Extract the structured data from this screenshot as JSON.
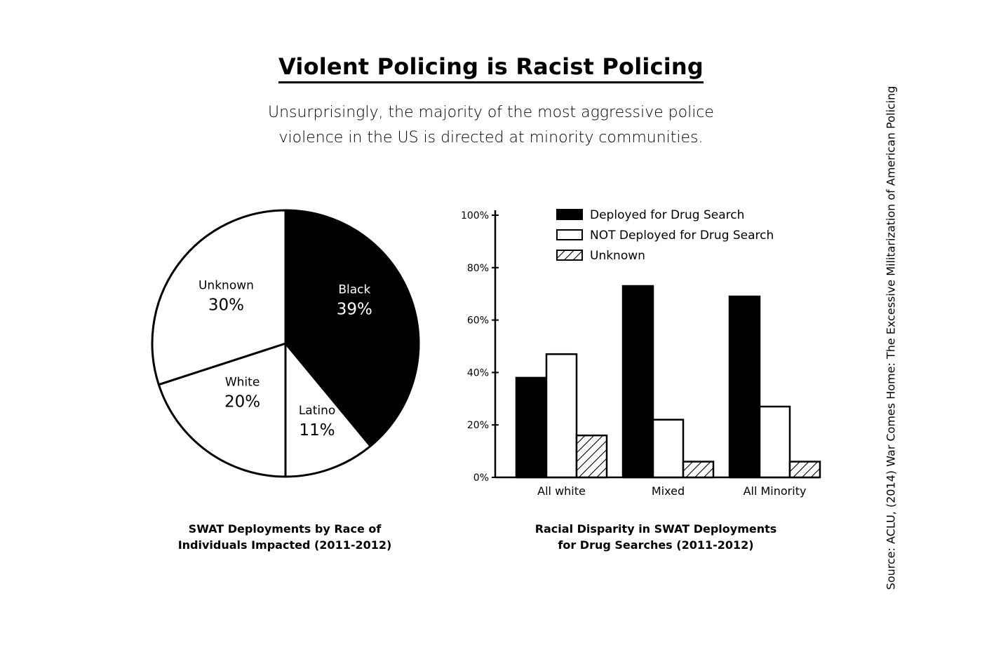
{
  "title": "Violent Policing is Racist Policing",
  "subtitle_line1": "Unsurprisingly, the majority of the most aggressive police",
  "subtitle_line2": "violence in the US is directed at minority communities.",
  "source": "Source: ACLU, (2014) War Comes Home: The Excessive Militarization of American Policing",
  "colors": {
    "black": "#000000",
    "white": "#ffffff"
  },
  "chart_data": [
    {
      "type": "pie",
      "title_line1": "SWAT Deployments by Race of",
      "title_line2": "Individuals Impacted (2011-2012)",
      "slices": [
        {
          "label": "Black",
          "value": 39,
          "display": "39%",
          "fill": "#000000"
        },
        {
          "label": "Latino",
          "value": 11,
          "display": "11%",
          "fill": "#ffffff"
        },
        {
          "label": "White",
          "value": 20,
          "display": "20%",
          "fill": "#ffffff"
        },
        {
          "label": "Unknown",
          "value": 30,
          "display": "30%",
          "fill": "#ffffff"
        }
      ]
    },
    {
      "type": "bar",
      "title_line1": "Racial Disparity in SWAT Deployments",
      "title_line2": "for Drug Searches (2011-2012)",
      "categories": [
        "All white",
        "Mixed",
        "All Minority"
      ],
      "series": [
        {
          "name": "Deployed for Drug Search",
          "pattern": "solid",
          "values": [
            38,
            73,
            69
          ]
        },
        {
          "name": "NOT Deployed for Drug Search",
          "pattern": "white",
          "values": [
            47,
            22,
            27
          ]
        },
        {
          "name": "Unknown",
          "pattern": "hatch",
          "values": [
            16,
            6,
            6
          ]
        }
      ],
      "yticks": [
        "0%",
        "20%",
        "40%",
        "60%",
        "80%",
        "100%"
      ],
      "ylim": [
        0,
        100
      ],
      "legend": "top-right"
    }
  ]
}
